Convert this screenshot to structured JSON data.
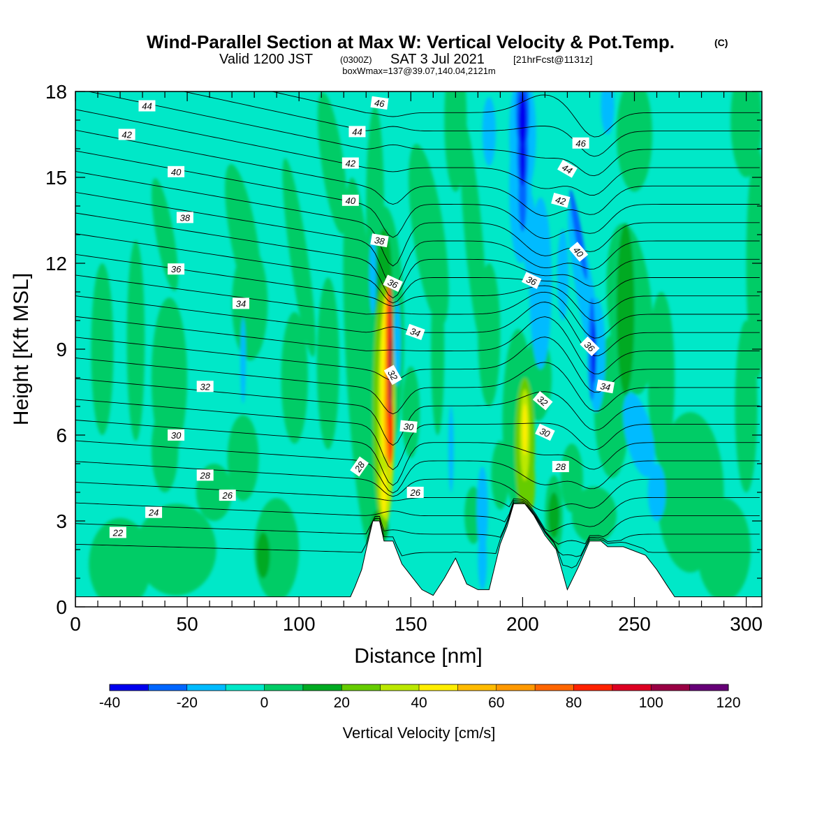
{
  "title": "Wind-Parallel Section at Max W: Vertical Velocity & Pot.Temp.",
  "title_mark": "(C)",
  "subtitle_main": "Valid 1200 JST",
  "subtitle_small1": "(0300Z)",
  "subtitle_main2": "SAT 3 Jul 2021",
  "subtitle_small2": "[21hrFcst@1131z]",
  "subsubtitle": "boxWmax=137@39.07,140.04,2121m",
  "chart_data": {
    "type": "heatmap",
    "xlabel": "Distance [nm]",
    "ylabel": "Height [Kft MSL]",
    "xlim": [
      0,
      307
    ],
    "ylim": [
      0,
      18
    ],
    "x_ticks": [
      "0",
      "50",
      "100",
      "150",
      "200",
      "250",
      "300"
    ],
    "y_ticks": [
      "0",
      "3",
      "6",
      "9",
      "12",
      "15",
      "18"
    ],
    "colorbar": {
      "label": "Vertical Velocity [cm/s]",
      "tick_labels": [
        "-40",
        "-20",
        "0",
        "20",
        "40",
        "60",
        "80",
        "100",
        "120"
      ],
      "levels": [
        -40,
        -30,
        -20,
        -10,
        0,
        10,
        20,
        30,
        40,
        50,
        60,
        70,
        80,
        90,
        100,
        110,
        120
      ],
      "colors": [
        "#0000ee",
        "#0066ff",
        "#00bbff",
        "#00e8c8",
        "#00cc66",
        "#00aa22",
        "#66cc00",
        "#bbe800",
        "#ffee00",
        "#ffbb00",
        "#ff9900",
        "#ff6600",
        "#ff2200",
        "#dd0022",
        "#990044",
        "#660077"
      ]
    },
    "vertical_velocity_features": [
      {
        "name": "updraft core",
        "x": 138,
        "z_bottom": 3,
        "z_top": 12.5,
        "w_max": 100
      },
      {
        "name": "updraft",
        "x": 201,
        "z_bottom": 3.5,
        "z_top": 8.5,
        "w_max": 40
      },
      {
        "name": "downdraft",
        "x": 200,
        "z_bottom": 12,
        "z_top": 18,
        "w_min": -40
      },
      {
        "name": "downdraft",
        "x": 232,
        "z_bottom": 8.5,
        "z_top": 10.5,
        "w_min": -30
      }
    ],
    "terrain": [
      [
        0,
        0.35
      ],
      [
        123,
        0.35
      ],
      [
        125,
        0.7
      ],
      [
        128,
        1.3
      ],
      [
        130,
        2
      ],
      [
        133,
        3
      ],
      [
        136,
        3
      ],
      [
        138,
        2.3
      ],
      [
        142,
        2.3
      ],
      [
        146,
        1.5
      ],
      [
        150,
        1.1
      ],
      [
        155,
        0.6
      ],
      [
        160,
        0.4
      ],
      [
        165,
        1.0
      ],
      [
        170,
        1.7
      ],
      [
        175,
        0.8
      ],
      [
        180,
        0.6
      ],
      [
        185,
        0.6
      ],
      [
        190,
        2.2
      ],
      [
        193,
        2.8
      ],
      [
        196,
        3.6
      ],
      [
        201,
        3.6
      ],
      [
        205,
        3.2
      ],
      [
        210,
        2.5
      ],
      [
        215,
        2.0
      ],
      [
        220,
        0.6
      ],
      [
        225,
        1.4
      ],
      [
        230,
        2.3
      ],
      [
        235,
        2.3
      ],
      [
        238,
        2.1
      ],
      [
        245,
        2.1
      ],
      [
        255,
        1.8
      ],
      [
        260,
        1.3
      ],
      [
        265,
        0.7
      ],
      [
        268,
        0.35
      ],
      [
        307,
        0.35
      ]
    ],
    "theta_contour_levels": [
      22,
      23,
      24,
      25,
      26,
      27,
      28,
      29,
      30,
      31,
      32,
      33,
      34,
      35,
      36,
      37,
      38,
      39,
      40,
      41,
      42,
      43,
      44,
      45,
      46
    ],
    "theta_contour_labels": [
      {
        "text": "44",
        "x": 32,
        "y": 17.5,
        "rot": 0
      },
      {
        "text": "42",
        "x": 23,
        "y": 16.5,
        "rot": 0
      },
      {
        "text": "40",
        "x": 45,
        "y": 15.2,
        "rot": 0
      },
      {
        "text": "38",
        "x": 49,
        "y": 13.6,
        "rot": 0
      },
      {
        "text": "36",
        "x": 45,
        "y": 11.8,
        "rot": 0
      },
      {
        "text": "34",
        "x": 74,
        "y": 10.6,
        "rot": 0
      },
      {
        "text": "32",
        "x": 58,
        "y": 7.7,
        "rot": 0
      },
      {
        "text": "30",
        "x": 45,
        "y": 6.0,
        "rot": 0
      },
      {
        "text": "28",
        "x": 58,
        "y": 4.6,
        "rot": 0
      },
      {
        "text": "26",
        "x": 68,
        "y": 3.9,
        "rot": 0
      },
      {
        "text": "24",
        "x": 35,
        "y": 3.3,
        "rot": 0
      },
      {
        "text": "22",
        "x": 19,
        "y": 2.6,
        "rot": 0
      },
      {
        "text": "46",
        "x": 136,
        "y": 17.6,
        "rot": 8
      },
      {
        "text": "44",
        "x": 126,
        "y": 16.6,
        "rot": 0
      },
      {
        "text": "42",
        "x": 123,
        "y": 15.5,
        "rot": 0
      },
      {
        "text": "40",
        "x": 123,
        "y": 14.2,
        "rot": 0
      },
      {
        "text": "38",
        "x": 136,
        "y": 12.8,
        "rot": 10
      },
      {
        "text": "36",
        "x": 142,
        "y": 11.3,
        "rot": 25
      },
      {
        "text": "34",
        "x": 152,
        "y": 9.6,
        "rot": 20
      },
      {
        "text": "32",
        "x": 142,
        "y": 8.1,
        "rot": 60
      },
      {
        "text": "30",
        "x": 149,
        "y": 6.3,
        "rot": 5
      },
      {
        "text": "28",
        "x": 127,
        "y": 4.9,
        "rot": -55
      },
      {
        "text": "26",
        "x": 152,
        "y": 4.0,
        "rot": 0
      },
      {
        "text": "46",
        "x": 226,
        "y": 16.2,
        "rot": 0
      },
      {
        "text": "44",
        "x": 220,
        "y": 15.3,
        "rot": 30
      },
      {
        "text": "42",
        "x": 217,
        "y": 14.2,
        "rot": 15
      },
      {
        "text": "40",
        "x": 225,
        "y": 12.4,
        "rot": 50
      },
      {
        "text": "36",
        "x": 204,
        "y": 11.4,
        "rot": 25
      },
      {
        "text": "36",
        "x": 230,
        "y": 9.1,
        "rot": 45
      },
      {
        "text": "34",
        "x": 237,
        "y": 7.7,
        "rot": 10
      },
      {
        "text": "32",
        "x": 209,
        "y": 7.2,
        "rot": 40
      },
      {
        "text": "30",
        "x": 210,
        "y": 6.1,
        "rot": 25
      },
      {
        "text": "28",
        "x": 217,
        "y": 4.9,
        "rot": 0
      }
    ]
  }
}
